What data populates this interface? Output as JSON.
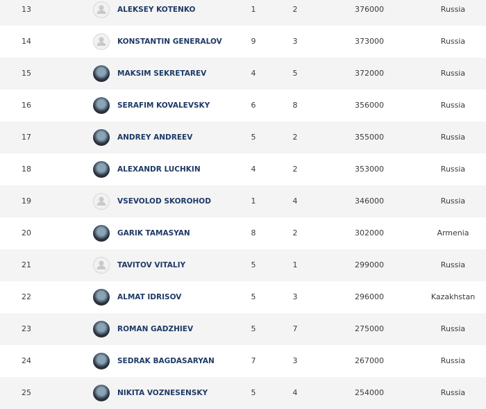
{
  "table": {
    "rows": [
      [
        13,
        "ALEKSEY KOTENKO",
        1,
        2,
        376000,
        "Russia"
      ],
      [
        14,
        "KONSTANTIN GENERALOV",
        9,
        3,
        373000,
        "Russia"
      ],
      [
        15,
        "MAKSIM SEKRETAREV",
        4,
        5,
        372000,
        "Russia"
      ],
      [
        16,
        "SERAFIM KOVALEVSKY",
        6,
        8,
        356000,
        "Russia"
      ],
      [
        17,
        "ANDREY ANDREEV",
        5,
        2,
        355000,
        "Russia"
      ],
      [
        18,
        "ALEXANDR LUCHKIN",
        4,
        2,
        353000,
        "Russia"
      ],
      [
        19,
        "VSEVOLOD SKOROHOD",
        1,
        4,
        346000,
        "Russia"
      ],
      [
        20,
        "GARIK TAMASYAN",
        8,
        2,
        302000,
        "Armenia"
      ],
      [
        21,
        "TAVITOV VITALIY",
        5,
        1,
        299000,
        "Russia"
      ],
      [
        22,
        "ALMAT IDRISOV",
        5,
        3,
        296000,
        "Kazakhstan"
      ],
      [
        23,
        "ROMAN GADZHIEV",
        5,
        7,
        275000,
        "Russia"
      ],
      [
        24,
        "SEDRAK BAGDASARYAN",
        7,
        3,
        267000,
        "Russia"
      ],
      [
        25,
        "NIKITA VOZNESENSKY",
        5,
        4,
        254000,
        "Russia"
      ]
    ]
  }
}
